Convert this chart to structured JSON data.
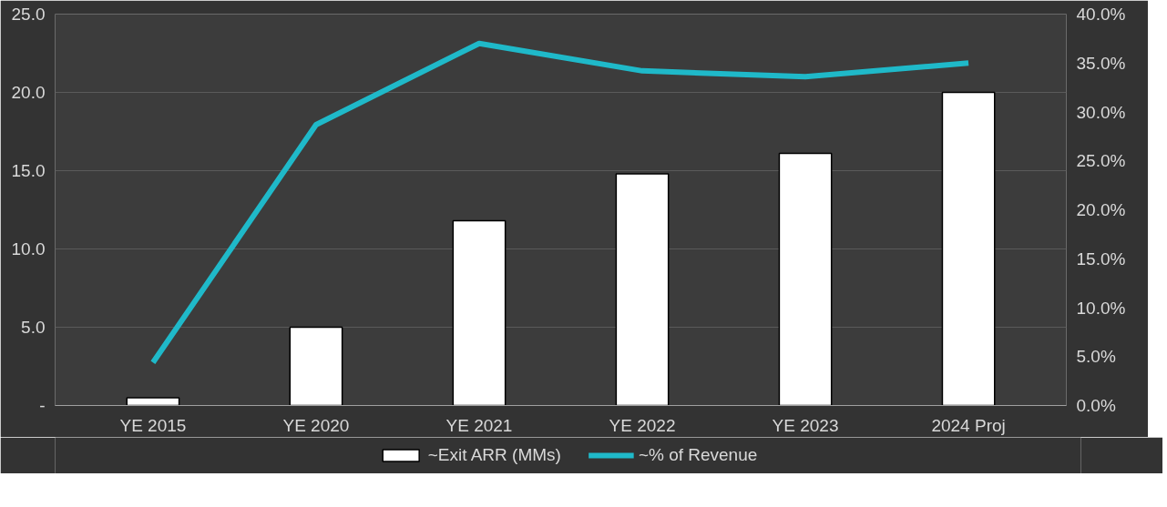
{
  "chart_data": {
    "type": "bar",
    "categories": [
      "YE 2015",
      "YE 2020",
      "YE 2021",
      "YE 2022",
      "YE 2023",
      "2024 Proj"
    ],
    "series": [
      {
        "name": "~Exit ARR (MMs)",
        "type": "bar",
        "color": "#ffffff",
        "values": [
          0.5,
          5.0,
          11.8,
          14.8,
          16.1,
          20.0
        ]
      },
      {
        "name": "~% of Revenue",
        "type": "line",
        "axis": "y2",
        "color": "#1fb9c9",
        "values": [
          4.4,
          28.7,
          37.0,
          34.2,
          33.6,
          35.0
        ]
      }
    ],
    "ylim": [
      0,
      25
    ],
    "yticks": [
      {
        "value": 0,
        "label": "-"
      },
      {
        "value": 5,
        "label": "5.0"
      },
      {
        "value": 10,
        "label": "10.0"
      },
      {
        "value": 15,
        "label": "15.0"
      },
      {
        "value": 20,
        "label": "20.0"
      },
      {
        "value": 25,
        "label": "25.0"
      }
    ],
    "y2lim": [
      0,
      40
    ],
    "y2ticks": [
      {
        "value": 0,
        "label": "0.0%"
      },
      {
        "value": 5,
        "label": "5.0%"
      },
      {
        "value": 10,
        "label": "10.0%"
      },
      {
        "value": 15,
        "label": "15.0%"
      },
      {
        "value": 20,
        "label": "20.0%"
      },
      {
        "value": 25,
        "label": "25.0%"
      },
      {
        "value": 30,
        "label": "30.0%"
      },
      {
        "value": 35,
        "label": "35.0%"
      },
      {
        "value": 40,
        "label": "40.0%"
      }
    ],
    "grid": "y",
    "legend": "bottom",
    "marker": "none",
    "line_style": "solid"
  }
}
